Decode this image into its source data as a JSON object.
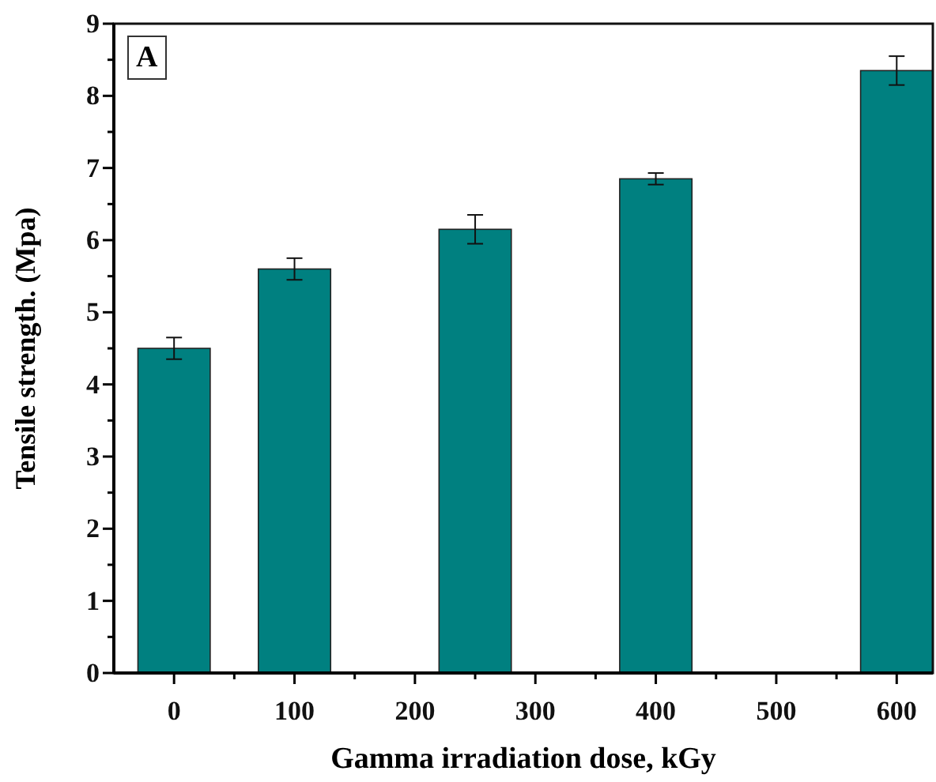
{
  "chart_data": {
    "type": "bar",
    "xlabel": "Gamma irradiation dose, kGy",
    "ylabel": "Tensile strength. (Mpa)",
    "annotations": [
      "A"
    ],
    "x": [
      0,
      100,
      250,
      400,
      600
    ],
    "series": [
      {
        "color": "#008080",
        "values": [
          4.5,
          5.6,
          6.15,
          6.85,
          8.35
        ],
        "errors": [
          0.15,
          0.15,
          0.2,
          0.08,
          0.2
        ]
      }
    ],
    "xlim": [
      -50,
      630
    ],
    "xticks": [
      0,
      {
        "value": 50,
        "label": null
      },
      100,
      {
        "value": 150,
        "label": null
      },
      200,
      {
        "value": 250,
        "label": null
      },
      300,
      {
        "value": 350,
        "label": null
      },
      400,
      {
        "value": 450,
        "label": null
      },
      500,
      {
        "value": 550,
        "label": null
      },
      600
    ],
    "ylim": [
      0,
      9
    ],
    "yticks": [
      0,
      {
        "value": 0.5,
        "label": null
      },
      1,
      {
        "value": 1.5,
        "label": null
      },
      2,
      {
        "value": 2.5,
        "label": null
      },
      3,
      {
        "value": 3.5,
        "label": null
      },
      4,
      {
        "value": 4.5,
        "label": null
      },
      5,
      {
        "value": 5.5,
        "label": null
      },
      6,
      {
        "value": 6.5,
        "label": null
      },
      7,
      {
        "value": 7.5,
        "label": null
      },
      8,
      {
        "value": 8.5,
        "label": null
      },
      9
    ],
    "grid": false
  }
}
